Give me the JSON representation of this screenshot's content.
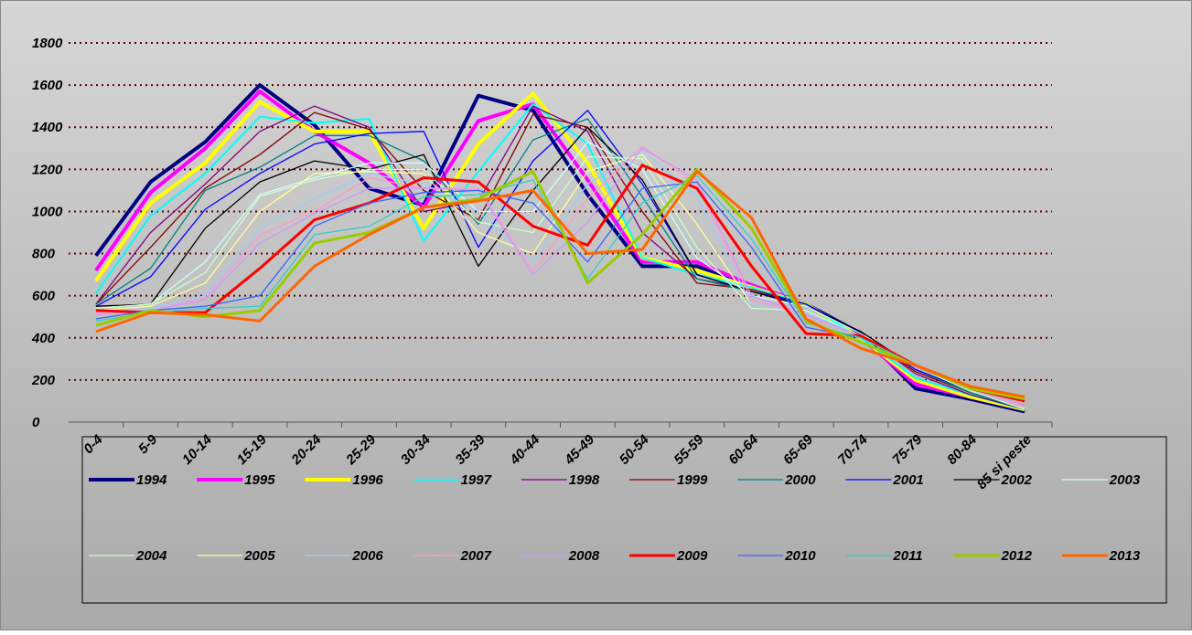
{
  "chart_data": {
    "type": "line",
    "categories": [
      "0-4",
      "5-9",
      "10-14",
      "15-19",
      "20-24",
      "25-29",
      "30-34",
      "35-39",
      "40-44",
      "45-49",
      "50-54",
      "55-59",
      "60-64",
      "65-69",
      "70-74",
      "75-79",
      "80-84",
      "85  si peste"
    ],
    "ylim": [
      0,
      1800
    ],
    "yticks": [
      0,
      200,
      400,
      600,
      800,
      1000,
      1200,
      1400,
      1600,
      1800
    ],
    "grid": true,
    "series": [
      {
        "name": "1994",
        "color": "#000080",
        "line_width": 4,
        "values": [
          790,
          1140,
          1330,
          1600,
          1410,
          1110,
          1030,
          1550,
          1480,
          1080,
          740,
          740,
          650,
          560,
          420,
          160,
          110,
          50
        ]
      },
      {
        "name": "1995",
        "color": "#ff00ff",
        "line_width": 4,
        "values": [
          720,
          1090,
          1300,
          1570,
          1380,
          1230,
          1020,
          1430,
          1510,
          1150,
          760,
          760,
          650,
          560,
          400,
          180,
          120,
          60
        ]
      },
      {
        "name": "1996",
        "color": "#ffff00",
        "line_width": 4,
        "values": [
          670,
          1040,
          1230,
          1520,
          1380,
          1380,
          920,
          1320,
          1560,
          1230,
          780,
          720,
          640,
          560,
          400,
          200,
          120,
          60
        ]
      },
      {
        "name": "1997",
        "color": "#00ffff",
        "line_width": 2,
        "values": [
          610,
          980,
          1180,
          1450,
          1420,
          1440,
          860,
          1190,
          1510,
          1320,
          780,
          700,
          640,
          560,
          400,
          210,
          130,
          60
        ]
      },
      {
        "name": "1998",
        "color": "#800080",
        "line_width": 1.3,
        "values": [
          560,
          900,
          1130,
          1380,
          1500,
          1400,
          1000,
          1050,
          1500,
          1380,
          900,
          680,
          630,
          560,
          420,
          230,
          130,
          60
        ]
      },
      {
        "name": "1999",
        "color": "#800000",
        "line_width": 1.3,
        "values": [
          560,
          830,
          1110,
          1270,
          1470,
          1390,
          1100,
          960,
          1460,
          1400,
          1000,
          660,
          630,
          560,
          420,
          240,
          140,
          60
        ]
      },
      {
        "name": "2000",
        "color": "#008080",
        "line_width": 1.3,
        "values": [
          560,
          730,
          1100,
          1210,
          1360,
          1360,
          1240,
          940,
          1340,
          1440,
          1070,
          680,
          620,
          560,
          420,
          250,
          140,
          60
        ]
      },
      {
        "name": "2001",
        "color": "#0000ff",
        "line_width": 1.3,
        "values": [
          550,
          690,
          1010,
          1180,
          1320,
          1370,
          1380,
          830,
          1240,
          1480,
          1130,
          700,
          620,
          560,
          420,
          250,
          150,
          60
        ]
      },
      {
        "name": "2002",
        "color": "#000000",
        "line_width": 1.3,
        "values": [
          550,
          560,
          920,
          1140,
          1240,
          1200,
          1270,
          740,
          1100,
          1400,
          1150,
          700,
          620,
          550,
          430,
          260,
          150,
          60
        ]
      },
      {
        "name": "2003",
        "color": "#ccffff",
        "line_width": 1.3,
        "values": [
          540,
          560,
          760,
          1080,
          1160,
          1230,
          1230,
          1000,
          1000,
          1330,
          1200,
          780,
          600,
          550,
          420,
          260,
          150,
          60
        ]
      },
      {
        "name": "2004",
        "color": "#ccffcc",
        "line_width": 1.3,
        "values": [
          540,
          560,
          710,
          1070,
          1150,
          1200,
          1200,
          950,
          900,
          1260,
          1250,
          830,
          540,
          530,
          410,
          260,
          150,
          60
        ]
      },
      {
        "name": "2005",
        "color": "#ffff99",
        "line_width": 1.3,
        "values": [
          530,
          550,
          660,
          1000,
          1180,
          1190,
          1180,
          900,
          800,
          1190,
          1270,
          940,
          560,
          520,
          410,
          260,
          160,
          70
        ]
      },
      {
        "name": "2006",
        "color": "#99ccff",
        "line_width": 1.3,
        "values": [
          520,
          540,
          600,
          920,
          1060,
          1180,
          1130,
          1000,
          760,
          1130,
          1290,
          1070,
          560,
          520,
          410,
          260,
          160,
          70
        ]
      },
      {
        "name": "2007",
        "color": "#ff99cc",
        "line_width": 1.3,
        "values": [
          520,
          530,
          590,
          890,
          1000,
          1160,
          1110,
          1110,
          720,
          1060,
          1310,
          1130,
          580,
          510,
          410,
          260,
          160,
          70
        ]
      },
      {
        "name": "2008",
        "color": "#cc99ff",
        "line_width": 1.3,
        "values": [
          510,
          530,
          580,
          850,
          990,
          1110,
          1110,
          1100,
          700,
          950,
          1300,
          1150,
          600,
          510,
          410,
          260,
          160,
          80
        ]
      },
      {
        "name": "2009",
        "color": "#ff0000",
        "line_width": 3,
        "values": [
          530,
          520,
          520,
          730,
          960,
          1040,
          1160,
          1140,
          930,
          840,
          1220,
          1110,
          740,
          420,
          410,
          270,
          160,
          100
        ]
      },
      {
        "name": "2010",
        "color": "#3366ff",
        "line_width": 1.3,
        "values": [
          490,
          530,
          550,
          600,
          930,
          1040,
          1090,
          1100,
          1040,
          760,
          1110,
          1140,
          830,
          450,
          400,
          270,
          160,
          110
        ]
      },
      {
        "name": "2011",
        "color": "#33cccc",
        "line_width": 1.3,
        "values": [
          480,
          520,
          540,
          550,
          890,
          930,
          1070,
          1080,
          1150,
          680,
          1040,
          1170,
          870,
          470,
          400,
          270,
          160,
          110
        ]
      },
      {
        "name": "2012",
        "color": "#99cc00",
        "line_width": 3,
        "values": [
          460,
          530,
          500,
          530,
          850,
          900,
          1020,
          1060,
          1190,
          660,
          890,
          1200,
          920,
          480,
          380,
          270,
          160,
          110
        ]
      },
      {
        "name": "2013",
        "color": "#ff6600",
        "line_width": 3,
        "values": [
          430,
          520,
          510,
          480,
          740,
          890,
          1020,
          1050,
          1100,
          800,
          820,
          1190,
          970,
          490,
          350,
          270,
          170,
          120
        ]
      }
    ]
  }
}
